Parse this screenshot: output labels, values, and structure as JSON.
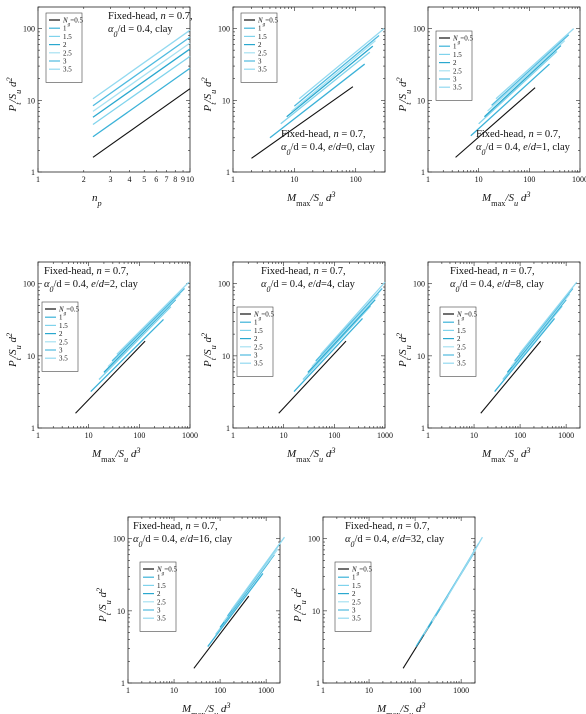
{
  "chart_data": [
    {
      "type": "line",
      "xlabel": "n_p",
      "ylabel": "P_t/S_u d^2",
      "xscale": "log",
      "yscale": "log",
      "xlim": [
        1,
        10
      ],
      "ylim": [
        1,
        200
      ],
      "annotation": [
        "Fixed-head, n = 0.7,",
        "α_0/d = 0.4, clay"
      ],
      "annotation_position": "top-right",
      "legend_title": "N_g",
      "legend_position": "top-left",
      "series": [
        {
          "name": "0.5",
          "x": [
            2.3,
            10
          ],
          "y": [
            1.6,
            14.5
          ]
        },
        {
          "name": "1",
          "x": [
            2.3,
            10
          ],
          "y": [
            3.1,
            28
          ]
        },
        {
          "name": "1.5",
          "x": [
            2.3,
            10
          ],
          "y": [
            4.6,
            41
          ]
        },
        {
          "name": "2",
          "x": [
            2.3,
            10
          ],
          "y": [
            5.8,
            52
          ]
        },
        {
          "name": "2.5",
          "x": [
            2.3,
            10
          ],
          "y": [
            7.0,
            63
          ]
        },
        {
          "name": "3",
          "x": [
            2.3,
            10
          ],
          "y": [
            8.4,
            76
          ]
        },
        {
          "name": "3.5",
          "x": [
            2.3,
            10
          ],
          "y": [
            10.5,
            95
          ]
        }
      ]
    },
    {
      "type": "line",
      "xlabel": "M_max/S_u d^3",
      "ylabel": "P_t/S_u d^2",
      "xscale": "log",
      "yscale": "log",
      "xlim": [
        1,
        300
      ],
      "ylim": [
        1,
        200
      ],
      "annotation": [
        "Fixed-head, n = 0.7,",
        "α_0/d = 0.4, e/d=0, clay"
      ],
      "annotation_position": "bottom-right",
      "legend_title": "N_g",
      "legend_position": "top-left",
      "series": [
        {
          "name": "0.5",
          "x": [
            2,
            90
          ],
          "y": [
            1.55,
            15.5
          ]
        },
        {
          "name": "1",
          "x": [
            4,
            140
          ],
          "y": [
            3.0,
            32
          ]
        },
        {
          "name": "1.5",
          "x": [
            6,
            170
          ],
          "y": [
            4.7,
            47
          ]
        },
        {
          "name": "2",
          "x": [
            7.5,
            190
          ],
          "y": [
            5.9,
            57
          ]
        },
        {
          "name": "2.5",
          "x": [
            9,
            210
          ],
          "y": [
            7.0,
            68
          ]
        },
        {
          "name": "3",
          "x": [
            10,
            240
          ],
          "y": [
            8.3,
            80
          ]
        },
        {
          "name": "3.5",
          "x": [
            12,
            290
          ],
          "y": [
            10.5,
            100
          ]
        }
      ]
    },
    {
      "type": "line",
      "xlabel": "M_max/S_u d^3",
      "ylabel": "P_t/S_u d^2",
      "xscale": "log",
      "yscale": "log",
      "xlim": [
        1,
        1000
      ],
      "ylim": [
        1,
        200
      ],
      "annotation": [
        "Fixed-head, n = 0.7,",
        "α_0/d = 0.4, e/d=1, clay"
      ],
      "annotation_position": "bottom-right",
      "legend_title": "N_g",
      "legend_position": "top-left",
      "series": [
        {
          "name": "0.5",
          "x": [
            3.5,
            130
          ],
          "y": [
            1.6,
            15
          ]
        },
        {
          "name": "1",
          "x": [
            7,
            250
          ],
          "y": [
            3.2,
            32
          ]
        },
        {
          "name": "1.5",
          "x": [
            10,
            350
          ],
          "y": [
            4.7,
            48
          ]
        },
        {
          "name": "2",
          "x": [
            13,
            420
          ],
          "y": [
            5.9,
            58
          ]
        },
        {
          "name": "2.5",
          "x": [
            15,
            500
          ],
          "y": [
            7.1,
            68
          ]
        },
        {
          "name": "3",
          "x": [
            18,
            600
          ],
          "y": [
            8.5,
            82
          ]
        },
        {
          "name": "3.5",
          "x": [
            22,
            750
          ],
          "y": [
            10.5,
            100
          ]
        }
      ]
    },
    {
      "type": "line",
      "xlabel": "M_max/S_u d^3",
      "ylabel": "P_t/S_u d^2",
      "xscale": "log",
      "yscale": "log",
      "xlim": [
        1,
        1000
      ],
      "ylim": [
        1,
        200
      ],
      "annotation": [
        "Fixed-head, n = 0.7,",
        "α_0/d = 0.4, e/d=2, clay"
      ],
      "annotation_position": "top",
      "legend_title": "N_g",
      "legend_position": "middle-left",
      "series": [
        {
          "name": "0.5",
          "x": [
            5.5,
            130
          ],
          "y": [
            1.6,
            16
          ]
        },
        {
          "name": "1",
          "x": [
            11,
            300
          ],
          "y": [
            3.2,
            32
          ]
        },
        {
          "name": "1.5",
          "x": [
            16,
            420
          ],
          "y": [
            4.7,
            48
          ]
        },
        {
          "name": "2",
          "x": [
            20,
            520
          ],
          "y": [
            5.9,
            60
          ]
        },
        {
          "name": "2.5",
          "x": [
            24,
            640
          ],
          "y": [
            7.1,
            72
          ]
        },
        {
          "name": "3",
          "x": [
            29,
            780
          ],
          "y": [
            8.5,
            86
          ]
        },
        {
          "name": "3.5",
          "x": [
            36,
            950
          ],
          "y": [
            10.5,
            105
          ]
        }
      ]
    },
    {
      "type": "line",
      "xlabel": "M_max/S_u d^3",
      "ylabel": "P_t/S_u d^2",
      "xscale": "log",
      "yscale": "log",
      "xlim": [
        1,
        1000
      ],
      "ylim": [
        1,
        200
      ],
      "annotation": [
        "Fixed-head, n = 0.7,",
        "α_0/d = 0.4, e/d=4, clay"
      ],
      "annotation_position": "top",
      "legend_title": "N_g",
      "legend_position": "middle-left",
      "series": [
        {
          "name": "0.5",
          "x": [
            8,
            170
          ],
          "y": [
            1.6,
            16
          ]
        },
        {
          "name": "1",
          "x": [
            16,
            360
          ],
          "y": [
            3.2,
            33
          ]
        },
        {
          "name": "1.5",
          "x": [
            24,
            520
          ],
          "y": [
            4.7,
            49
          ]
        },
        {
          "name": "2",
          "x": [
            30,
            640
          ],
          "y": [
            5.9,
            60
          ]
        },
        {
          "name": "2.5",
          "x": [
            36,
            760
          ],
          "y": [
            7.1,
            72
          ]
        },
        {
          "name": "3",
          "x": [
            43,
            880
          ],
          "y": [
            8.5,
            86
          ]
        },
        {
          "name": "3.5",
          "x": [
            54,
            1000
          ],
          "y": [
            10.5,
            105
          ]
        }
      ]
    },
    {
      "type": "line",
      "xlabel": "M_max/S_u d^3",
      "ylabel": "P_t/S_u d^2",
      "xscale": "log",
      "yscale": "log",
      "xlim": [
        1,
        2000
      ],
      "ylim": [
        1,
        200
      ],
      "annotation": [
        "Fixed-head, n = 0.7,",
        "α_0/d = 0.4, e/d=8, clay"
      ],
      "annotation_position": "top",
      "legend_title": "N_g",
      "legend_position": "middle-left",
      "series": [
        {
          "name": "0.5",
          "x": [
            14,
            280
          ],
          "y": [
            1.6,
            16
          ]
        },
        {
          "name": "1",
          "x": [
            28,
            560
          ],
          "y": [
            3.2,
            33
          ]
        },
        {
          "name": "1.5",
          "x": [
            42,
            820
          ],
          "y": [
            4.7,
            49
          ]
        },
        {
          "name": "2",
          "x": [
            53,
            1000
          ],
          "y": [
            5.9,
            60
          ]
        },
        {
          "name": "2.5",
          "x": [
            64,
            1200
          ],
          "y": [
            7.1,
            72
          ]
        },
        {
          "name": "3",
          "x": [
            76,
            1400
          ],
          "y": [
            8.5,
            86
          ]
        },
        {
          "name": "3.5",
          "x": [
            95,
            1700
          ],
          "y": [
            10.5,
            105
          ]
        }
      ]
    },
    {
      "type": "line",
      "xlabel": "M_max/S_u d^3",
      "ylabel": "P_t/S_u d^2",
      "xscale": "log",
      "yscale": "log",
      "xlim": [
        1,
        2000
      ],
      "ylim": [
        1,
        200
      ],
      "annotation": [
        "Fixed-head, n = 0.7,",
        "α_0/d = 0.4, e/d=16, clay"
      ],
      "annotation_position": "top",
      "legend_title": "N_g",
      "legend_position": "middle-left",
      "series": [
        {
          "name": "0.5",
          "x": [
            27,
            420
          ],
          "y": [
            1.6,
            16
          ]
        },
        {
          "name": "1",
          "x": [
            54,
            850
          ],
          "y": [
            3.2,
            33
          ]
        },
        {
          "name": "1.5",
          "x": [
            80,
            1200
          ],
          "y": [
            4.7,
            49
          ]
        },
        {
          "name": "2",
          "x": [
            100,
            1500
          ],
          "y": [
            5.9,
            60
          ]
        },
        {
          "name": "2.5",
          "x": [
            120,
            1800
          ],
          "y": [
            7.1,
            72
          ]
        },
        {
          "name": "3",
          "x": [
            145,
            2000
          ],
          "y": [
            8.5,
            86
          ]
        },
        {
          "name": "3.5",
          "x": [
            180,
            2500
          ],
          "y": [
            10.5,
            105
          ]
        }
      ]
    },
    {
      "type": "line",
      "xlabel": "M_max/S_u d^3",
      "ylabel": "P_t/S_u d^2",
      "xscale": "log",
      "yscale": "log",
      "xlim": [
        1,
        2000
      ],
      "ylim": [
        1,
        200
      ],
      "annotation": [
        "Fixed-head, n = 0.7,",
        "α_0/d = 0.4, e/d=32, clay"
      ],
      "annotation_position": "top",
      "legend_title": "N_g",
      "legend_position": "middle-left",
      "series": [
        {
          "name": "0.5",
          "x": [
            55,
            520
          ],
          "y": [
            1.6,
            16
          ]
        },
        {
          "name": "1",
          "x": [
            105,
            1000
          ],
          "y": [
            3.2,
            33
          ]
        },
        {
          "name": "1.5",
          "x": [
            155,
            1450
          ],
          "y": [
            4.7,
            49
          ]
        },
        {
          "name": "2",
          "x": [
            195,
            1800
          ],
          "y": [
            5.9,
            60
          ]
        },
        {
          "name": "2.5",
          "x": [
            235,
            2100
          ],
          "y": [
            7.1,
            72
          ]
        },
        {
          "name": "3",
          "x": [
            280,
            2400
          ],
          "y": [
            8.5,
            86
          ]
        },
        {
          "name": "3.5",
          "x": [
            350,
            2900
          ],
          "y": [
            10.5,
            105
          ]
        }
      ]
    }
  ],
  "colors": {
    "0.5": "#111111",
    "1": "#3bb2d8",
    "1.5": "#7fd3ec",
    "2": "#2aa8cf",
    "2.5": "#a6e1f2",
    "3": "#4fbbe0",
    "3.5": "#92d9f0"
  }
}
